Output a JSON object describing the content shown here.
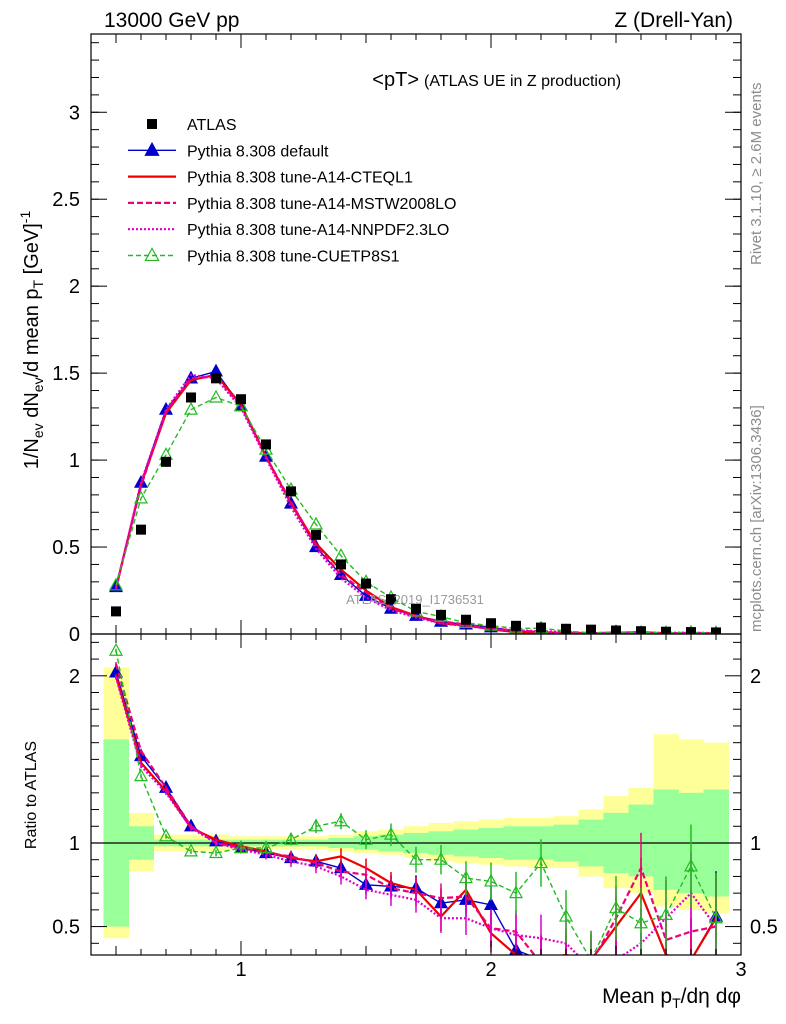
{
  "header": {
    "left": "13000 GeV pp",
    "right": "Z (Drell-Yan)"
  },
  "side_labels": {
    "rivet": "Rivet 3.1.10, ≥ 2.6M events",
    "mcplots": "mcplots.cern.ch [arXiv:1306.3436]"
  },
  "watermark": "ATLAS_2019_I1736531",
  "chart_data": {
    "type": "line",
    "title": "<pT>",
    "subtitle": "(ATLAS UE in Z production)",
    "xlabel": "Mean p_T/dη dφ",
    "ylabel": "1/N_ev dN_ev/d mean p_T [GeV]^-1",
    "ratio_ylabel": "Ratio to ATLAS",
    "xlim": [
      0.4,
      3.0
    ],
    "ylim_main": [
      0,
      3.45
    ],
    "ylim_ratio": [
      0.33,
      2.25
    ],
    "main_yticks": [
      {
        "v": 0,
        "l": "0"
      },
      {
        "v": 0.5,
        "l": "0.5"
      },
      {
        "v": 1,
        "l": "1"
      },
      {
        "v": 1.5,
        "l": "1.5"
      },
      {
        "v": 2,
        "l": "2"
      },
      {
        "v": 2.5,
        "l": "2.5"
      },
      {
        "v": 3,
        "l": "3"
      }
    ],
    "ratio_yticks": [
      {
        "v": 0.5,
        "l": "0.5"
      },
      {
        "v": 1,
        "l": "1"
      },
      {
        "v": 2,
        "l": "2"
      }
    ],
    "xticks": [
      {
        "v": 1,
        "l": "1"
      },
      {
        "v": 2,
        "l": "2"
      },
      {
        "v": 3,
        "l": "3"
      }
    ],
    "x": [
      0.5,
      0.6,
      0.7,
      0.8,
      0.9,
      1.0,
      1.1,
      1.2,
      1.3,
      1.4,
      1.5,
      1.6,
      1.7,
      1.8,
      1.9,
      2.0,
      2.1,
      2.2,
      2.3,
      2.4,
      2.5,
      2.6,
      2.7,
      2.8,
      2.9
    ],
    "data": {
      "name": "ATLAS",
      "values": [
        0.13,
        0.6,
        0.99,
        1.36,
        1.47,
        1.35,
        1.09,
        0.82,
        0.57,
        0.4,
        0.29,
        0.2,
        0.145,
        0.11,
        0.082,
        0.062,
        0.047,
        0.037,
        0.03,
        0.025,
        0.02,
        0.016,
        0.013,
        0.011,
        0.009
      ],
      "band_stat": [
        [
          0.5,
          1.62
        ],
        [
          0.9,
          1.1
        ],
        [
          0.98,
          1.02
        ],
        [
          0.98,
          1.02
        ],
        [
          0.98,
          1.02
        ],
        [
          0.98,
          1.02
        ],
        [
          0.98,
          1.02
        ],
        [
          0.98,
          1.02
        ],
        [
          0.98,
          1.02
        ],
        [
          0.97,
          1.03
        ],
        [
          0.96,
          1.04
        ],
        [
          0.95,
          1.05
        ],
        [
          0.94,
          1.06
        ],
        [
          0.93,
          1.07
        ],
        [
          0.92,
          1.08
        ],
        [
          0.91,
          1.09
        ],
        [
          0.9,
          1.1
        ],
        [
          0.9,
          1.1
        ],
        [
          0.89,
          1.11
        ],
        [
          0.86,
          1.14
        ],
        [
          0.82,
          1.18
        ],
        [
          0.8,
          1.23
        ],
        [
          0.72,
          1.32
        ],
        [
          0.7,
          1.3
        ],
        [
          0.68,
          1.32
        ]
      ],
      "band_total": [
        [
          0.43,
          2.05
        ],
        [
          0.83,
          1.18
        ],
        [
          0.95,
          1.05
        ],
        [
          0.95,
          1.05
        ],
        [
          0.95,
          1.05
        ],
        [
          0.96,
          1.04
        ],
        [
          0.96,
          1.04
        ],
        [
          0.96,
          1.04
        ],
        [
          0.96,
          1.04
        ],
        [
          0.95,
          1.05
        ],
        [
          0.94,
          1.07
        ],
        [
          0.93,
          1.08
        ],
        [
          0.91,
          1.1
        ],
        [
          0.89,
          1.12
        ],
        [
          0.88,
          1.13
        ],
        [
          0.87,
          1.14
        ],
        [
          0.86,
          1.15
        ],
        [
          0.85,
          1.15
        ],
        [
          0.85,
          1.16
        ],
        [
          0.8,
          1.2
        ],
        [
          0.73,
          1.28
        ],
        [
          0.7,
          1.33
        ],
        [
          0.62,
          1.65
        ],
        [
          0.6,
          1.62
        ],
        [
          0.58,
          1.6
        ]
      ]
    },
    "series": [
      {
        "name": "Pythia 8.308 default",
        "color": "#0000cc",
        "dash": "none",
        "marker": "triangle-filled",
        "values": [
          0.27,
          0.87,
          1.29,
          1.47,
          1.51,
          1.31,
          1.02,
          0.75,
          0.5,
          0.34,
          0.22,
          0.146,
          0.105,
          0.071,
          0.055,
          0.039,
          0.017,
          0.012,
          0.009,
          0.006,
          0.005,
          0.004,
          0.004,
          0.003,
          0.005
        ],
        "ratio": [
          2.02,
          1.52,
          1.33,
          1.1,
          1.01,
          0.97,
          0.94,
          0.91,
          0.89,
          0.85,
          0.75,
          0.74,
          0.73,
          0.64,
          0.66,
          0.63,
          0.36,
          0.3,
          0.29,
          0.25,
          0.25,
          0.25,
          0.3,
          0.3,
          0.56
        ]
      },
      {
        "name": "Pythia 8.308 tune-A14-CTEQL1",
        "color": "#ee0000",
        "dash": "none",
        "marker": "none",
        "values": [
          0.26,
          0.86,
          1.27,
          1.46,
          1.49,
          1.32,
          1.02,
          0.75,
          0.52,
          0.37,
          0.25,
          0.155,
          0.105,
          0.061,
          0.05,
          0.027,
          0.01,
          0.007,
          0.007,
          0.004,
          0.007,
          0.011,
          0.004,
          0.005,
          0.005
        ],
        "ratio": [
          2.0,
          1.48,
          1.31,
          1.09,
          1.02,
          0.98,
          0.95,
          0.91,
          0.89,
          0.92,
          0.85,
          0.76,
          0.72,
          0.56,
          0.72,
          0.46,
          0.33,
          0.31,
          0.33,
          0.3,
          0.5,
          0.7,
          0.33,
          0.3,
          0.55
        ]
      },
      {
        "name": "Pythia 8.308 tune-A14-MSTW2008LO",
        "color": "#ee0077",
        "dash": "6,3",
        "marker": "none",
        "values": [
          0.27,
          0.85,
          1.28,
          1.47,
          1.48,
          1.31,
          1.02,
          0.76,
          0.51,
          0.34,
          0.24,
          0.148,
          0.1,
          0.073,
          0.055,
          0.03,
          0.022,
          0.01,
          0.007,
          0.004,
          0.009,
          0.006,
          0.005,
          0.006,
          0.005
        ],
        "ratio": [
          2.07,
          1.55,
          1.33,
          1.1,
          1.0,
          0.97,
          0.94,
          0.92,
          0.88,
          0.83,
          0.81,
          0.73,
          0.7,
          0.67,
          0.68,
          0.49,
          0.47,
          0.28,
          0.3,
          0.28,
          0.55,
          0.85,
          0.42,
          0.47,
          0.5
        ]
      },
      {
        "name": "Pythia 8.308 tune-A14-NNPDF2.3LO",
        "color": "#dd00cc",
        "dash": "2,2",
        "marker": "none",
        "values": [
          0.26,
          0.87,
          1.29,
          1.49,
          1.47,
          1.3,
          1.01,
          0.73,
          0.49,
          0.32,
          0.21,
          0.136,
          0.095,
          0.061,
          0.045,
          0.03,
          0.021,
          0.016,
          0.012,
          0.004,
          0.006,
          0.006,
          0.007,
          0.008,
          0.005
        ],
        "ratio": [
          1.99,
          1.46,
          1.3,
          1.09,
          1.0,
          0.96,
          0.93,
          0.89,
          0.86,
          0.8,
          0.72,
          0.69,
          0.66,
          0.55,
          0.55,
          0.49,
          0.45,
          0.43,
          0.4,
          0.25,
          0.3,
          0.4,
          0.55,
          0.7,
          0.5
        ]
      },
      {
        "name": "Pythia 8.308 tune-CUETP8S1",
        "color": "#22bb22",
        "dash": "5,3",
        "marker": "triangle-open",
        "values": [
          0.28,
          0.78,
          1.03,
          1.29,
          1.36,
          1.31,
          1.06,
          0.83,
          0.63,
          0.45,
          0.3,
          0.21,
          0.13,
          0.1,
          0.064,
          0.048,
          0.032,
          0.033,
          0.017,
          0.007,
          0.012,
          0.008,
          0.007,
          0.009,
          0.005
        ],
        "ratio": [
          2.15,
          1.4,
          1.04,
          0.95,
          0.94,
          0.97,
          0.97,
          1.02,
          1.1,
          1.13,
          1.02,
          1.05,
          0.9,
          0.9,
          0.79,
          0.77,
          0.7,
          0.88,
          0.56,
          0.3,
          0.61,
          0.52,
          0.57,
          0.86,
          0.55
        ]
      }
    ]
  }
}
